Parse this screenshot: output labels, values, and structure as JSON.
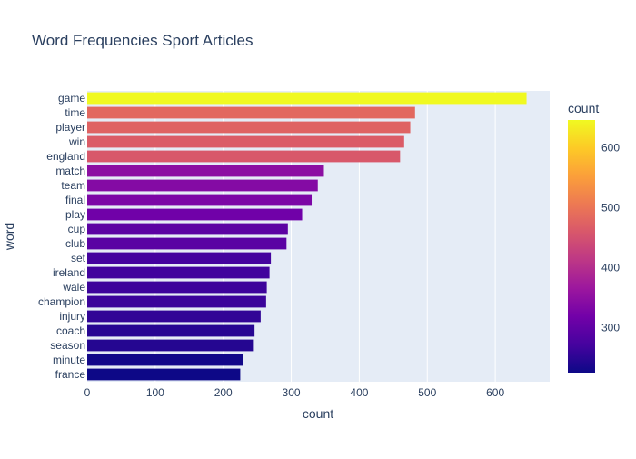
{
  "chart_data": {
    "type": "bar",
    "orientation": "horizontal",
    "title": "Word Frequencies Sport Articles",
    "xlabel": "count",
    "ylabel": "word",
    "xlim": [
      0,
      680
    ],
    "x_ticks": [
      0,
      100,
      200,
      300,
      400,
      500,
      600
    ],
    "grid": true,
    "categories": [
      "game",
      "time",
      "player",
      "win",
      "england",
      "match",
      "team",
      "final",
      "play",
      "cup",
      "club",
      "set",
      "ireland",
      "wale",
      "champion",
      "injury",
      "coach",
      "season",
      "minute",
      "france"
    ],
    "values": [
      646,
      482,
      475,
      466,
      460,
      348,
      339,
      330,
      316,
      295,
      293,
      270,
      268,
      264,
      263,
      255,
      246,
      245,
      229,
      225
    ],
    "colorbar": {
      "title": "count",
      "range": [
        225,
        646
      ],
      "ticks": [
        300,
        400,
        500,
        600
      ],
      "colorscale": [
        "#0d0887",
        "#46039f",
        "#7201a8",
        "#9c179e",
        "#bd3786",
        "#d8576b",
        "#ed7953",
        "#fb9f3a",
        "#fdca26",
        "#f0f921"
      ]
    },
    "colors": {
      "plot_background": "#e5ecf6",
      "gridline": "#ffffff",
      "text": "#2a3f5f"
    }
  }
}
